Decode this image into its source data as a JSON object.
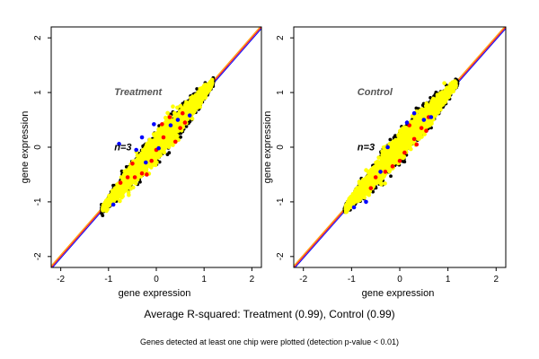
{
  "chart_data": [
    {
      "type": "scatter",
      "panel_label": "Treatment",
      "annotation": "n=3",
      "xlabel": "gene expression",
      "ylabel": "gene expression",
      "xlim": [
        -2.2,
        2.2
      ],
      "ylim": [
        -2.2,
        2.2
      ],
      "ticks": [
        -2,
        -1,
        0,
        1,
        2
      ],
      "grid": false,
      "diagonal_lines": [
        {
          "color": "#0000ff",
          "intercept": -0.03
        },
        {
          "color": "#ff0000",
          "intercept": 0.0
        },
        {
          "color": "#ffa500",
          "intercept": 0.03
        }
      ],
      "cloud": {
        "x_range": [
          -1.15,
          1.2
        ],
        "main_color": "#ffff00",
        "edge_color": "#000000"
      },
      "highlight_points": {
        "blue": [
          [
            -0.78,
            0.06
          ],
          [
            -0.42,
            -0.05
          ],
          [
            -0.22,
            -0.28
          ],
          [
            0.3,
            0.4
          ],
          [
            0.45,
            0.5
          ],
          [
            -0.9,
            -1.05
          ],
          [
            0.7,
            0.58
          ],
          [
            -0.05,
            0.42
          ],
          [
            -0.3,
            0.18
          ],
          [
            0.05,
            -0.02
          ]
        ],
        "red": [
          [
            -0.5,
            -0.3
          ],
          [
            -0.3,
            -0.48
          ],
          [
            -0.1,
            -0.25
          ],
          [
            0.12,
            0.42
          ],
          [
            0.28,
            0.55
          ],
          [
            -0.6,
            -0.55
          ],
          [
            -0.75,
            -0.65
          ],
          [
            0.5,
            0.35
          ],
          [
            0.55,
            0.62
          ],
          [
            0.15,
            0.18
          ],
          [
            -0.45,
            -0.55
          ],
          [
            0.0,
            -0.05
          ],
          [
            0.4,
            0.1
          ],
          [
            -0.2,
            -0.5
          ],
          [
            0.6,
            0.45
          ]
        ]
      }
    },
    {
      "type": "scatter",
      "panel_label": "Control",
      "annotation": "n=3",
      "xlabel": "gene expression",
      "ylabel": "gene expression",
      "xlim": [
        -2.2,
        2.2
      ],
      "ylim": [
        -2.2,
        2.2
      ],
      "ticks": [
        -2,
        -1,
        0,
        1,
        2
      ],
      "grid": false,
      "diagonal_lines": [
        {
          "color": "#0000ff",
          "intercept": -0.03
        },
        {
          "color": "#ff0000",
          "intercept": 0.0
        },
        {
          "color": "#ffa500",
          "intercept": 0.03
        }
      ],
      "cloud": {
        "x_range": [
          -1.15,
          1.2
        ],
        "main_color": "#ffff00",
        "edge_color": "#000000"
      },
      "highlight_points": {
        "blue": [
          [
            -0.25,
            0.0
          ],
          [
            0.3,
            0.62
          ],
          [
            0.5,
            0.5
          ],
          [
            -0.7,
            -1.0
          ],
          [
            -0.4,
            -0.45
          ],
          [
            0.15,
            0.45
          ],
          [
            -0.95,
            -1.1
          ],
          [
            0.65,
            0.55
          ]
        ],
        "red": [
          [
            -0.3,
            -0.45
          ],
          [
            0.1,
            -0.1
          ],
          [
            0.3,
            0.15
          ],
          [
            0.45,
            0.35
          ],
          [
            0.6,
            0.55
          ],
          [
            -0.5,
            -0.55
          ],
          [
            0.2,
            0.4
          ],
          [
            -0.15,
            -0.35
          ],
          [
            0.55,
            0.3
          ],
          [
            0.35,
            0.05
          ],
          [
            -0.6,
            -0.75
          ],
          [
            0.0,
            -0.25
          ]
        ]
      }
    }
  ],
  "summary_text": "Average R-squared: Treatment (0.99), Control (0.99)",
  "footnote_text": "Genes detected at least one chip were plotted (detection p-value < 0.01)"
}
